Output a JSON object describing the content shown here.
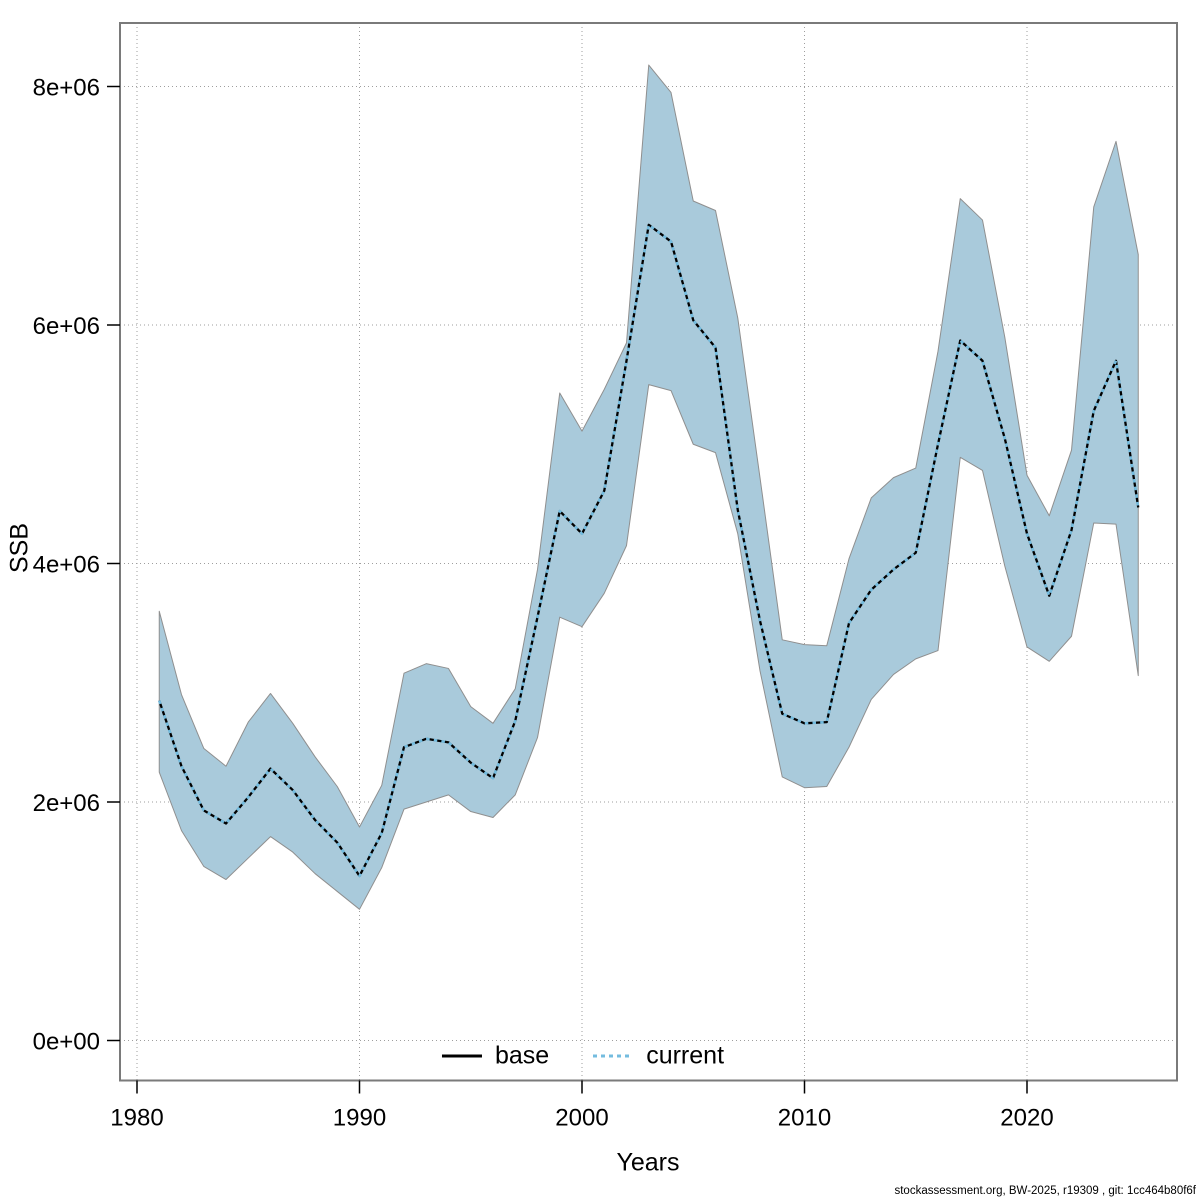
{
  "chart_data": {
    "type": "area",
    "title": "",
    "xlabel": "Years",
    "ylabel": "SSB",
    "footer": "stockassessment.org, BW-2025, r19309 , git: 1cc464b80f6f",
    "x_ticks": [
      1980,
      1990,
      2000,
      2010,
      2020
    ],
    "y_tick_labels": [
      "0e+00",
      "2e+06",
      "4e+06",
      "6e+06",
      "8e+06"
    ],
    "y_tick_values": [
      0,
      2000000,
      4000000,
      6000000,
      8000000
    ],
    "xlim": [
      1979.2,
      2026.7
    ],
    "ylim": [
      -335000,
      8533000
    ],
    "grid": true,
    "legend_position": "bottom-center",
    "colors": {
      "band_fill": "#a9cadb",
      "band_edge": "#8f8f8f",
      "base_line": "#000000",
      "current_line": "#74bcdf",
      "grid_line": "#9e9e9e",
      "plot_border": "#7a7a7a"
    },
    "years": [
      1981,
      1982,
      1983,
      1984,
      1985,
      1986,
      1987,
      1988,
      1989,
      1990,
      1991,
      1992,
      1993,
      1994,
      1995,
      1996,
      1997,
      1998,
      1999,
      2000,
      2001,
      2002,
      2003,
      2004,
      2005,
      2006,
      2007,
      2008,
      2009,
      2010,
      2011,
      2012,
      2013,
      2014,
      2015,
      2016,
      2017,
      2018,
      2019,
      2020,
      2021,
      2022,
      2023,
      2024,
      2025
    ],
    "series": [
      {
        "name": "base",
        "style": "solid",
        "values": [
          2850000,
          2300000,
          1930000,
          1820000,
          2040000,
          2280000,
          2100000,
          1850000,
          1660000,
          1380000,
          1740000,
          2460000,
          2530000,
          2500000,
          2330000,
          2200000,
          2680000,
          3550000,
          4440000,
          4250000,
          4610000,
          5700000,
          6840000,
          6700000,
          6040000,
          5810000,
          4450000,
          3520000,
          2740000,
          2660000,
          2670000,
          3500000,
          3780000,
          3950000,
          4090000,
          5000000,
          5870000,
          5700000,
          5050000,
          4250000,
          3730000,
          4280000,
          5280000,
          5700000,
          4470000
        ]
      },
      {
        "name": "current",
        "style": "dotted",
        "values": [
          2850000,
          2300000,
          1930000,
          1820000,
          2040000,
          2280000,
          2100000,
          1850000,
          1660000,
          1380000,
          1740000,
          2460000,
          2530000,
          2500000,
          2330000,
          2200000,
          2680000,
          3550000,
          4440000,
          4250000,
          4610000,
          5700000,
          6840000,
          6700000,
          6040000,
          5810000,
          4450000,
          3520000,
          2740000,
          2660000,
          2670000,
          3500000,
          3780000,
          3950000,
          4090000,
          5000000,
          5870000,
          5700000,
          5050000,
          4250000,
          3730000,
          4280000,
          5280000,
          5700000,
          4470000
        ]
      }
    ],
    "band": {
      "name": "current-confidence-band",
      "lower": [
        2250000,
        1760000,
        1460000,
        1350000,
        1530000,
        1710000,
        1580000,
        1400000,
        1250000,
        1100000,
        1450000,
        1940000,
        2000000,
        2060000,
        1920000,
        1870000,
        2060000,
        2540000,
        3550000,
        3470000,
        3750000,
        4150000,
        5500000,
        5450000,
        5000000,
        4930000,
        4250000,
        3100000,
        2210000,
        2120000,
        2130000,
        2460000,
        2860000,
        3070000,
        3200000,
        3270000,
        4890000,
        4780000,
        3980000,
        3300000,
        3180000,
        3390000,
        4340000,
        4330000,
        3060000
      ],
      "upper": [
        3600000,
        2900000,
        2450000,
        2300000,
        2670000,
        2910000,
        2660000,
        2380000,
        2130000,
        1790000,
        2140000,
        3080000,
        3160000,
        3120000,
        2800000,
        2660000,
        2950000,
        3950000,
        5430000,
        5110000,
        5460000,
        5850000,
        8180000,
        7950000,
        7040000,
        6960000,
        6060000,
        4720000,
        3360000,
        3320000,
        3310000,
        4040000,
        4550000,
        4720000,
        4800000,
        5780000,
        7060000,
        6880000,
        5900000,
        4740000,
        4400000,
        4950000,
        6990000,
        7540000,
        6590000
      ]
    },
    "legend": {
      "base_label": "base",
      "current_label": "current"
    }
  }
}
